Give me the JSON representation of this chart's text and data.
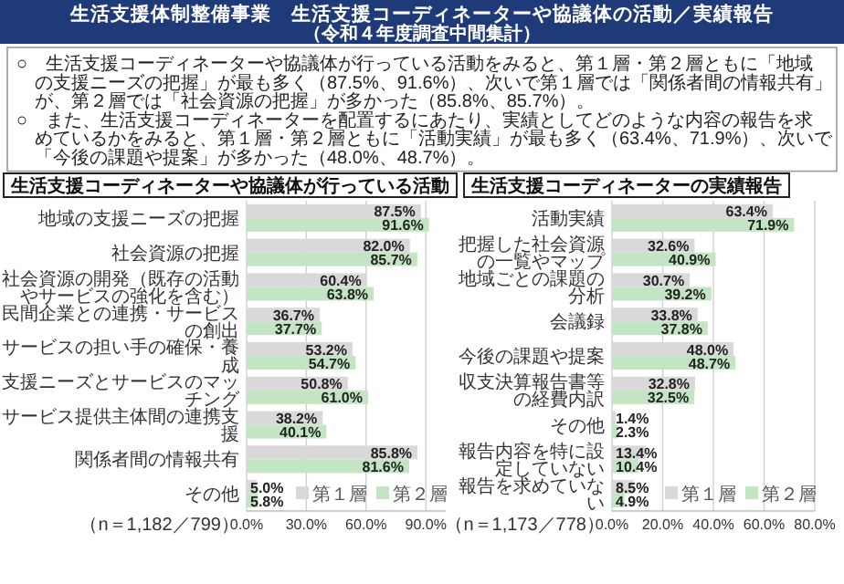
{
  "chart_data": [
    {
      "type": "other",
      "title": "生活支援体制整備事業　生活支援コーディネーターや協議体の活動／実績報告",
      "subtitle": "（令和４年度調査中間集計）",
      "annotations": [
        "○　生活支援コーディネーターや協議体が行っている活動をみると、第１層・第２層ともに「地域の支援ニーズの把握」が最も多く（87.5%、91.6%）、次いで第１層では「関係者間の情報共有」が、第２層では「社会資源の把握」が多かった（85.8%、85.7%）。",
        "○　また、生活支援コーディネーターを配置するにあたり、実績としてどのような内容の報告を求めているかをみると、第１層・第２層ともに「活動実績」が最も多く（63.4%、71.9%）、次いで「今後の課題や提案」が多かった（48.0%、48.7%）。"
      ]
    },
    {
      "type": "bar",
      "orientation": "horizontal",
      "title": "生活支援コーディネーターや協議体が行っている活動",
      "categories": [
        "地域の支援ニーズの把握",
        "社会資源の把握",
        "社会資源の開発（既存の活動やサービスの強化を含む）",
        "民間企業との連携・サービスの創出",
        "サービスの担い手の確保・養成",
        "支援ニーズとサービスのマッチング",
        "サービス提供主体間の連携支援",
        "関係者間の情報共有",
        "その他"
      ],
      "series": [
        {
          "name": "第１層",
          "color": "#d9d9d9",
          "values": [
            87.5,
            82.0,
            60.4,
            36.7,
            53.2,
            50.8,
            38.2,
            85.8,
            5.0
          ],
          "value_labels": [
            "87.5%",
            "82.0%",
            "60.4%",
            "36.7%",
            "53.2%",
            "50.8%",
            "38.2%",
            "85.8%",
            "5.0%"
          ]
        },
        {
          "name": "第２層",
          "color": "#c3e5c3",
          "values": [
            91.6,
            85.7,
            63.8,
            37.7,
            54.7,
            61.0,
            40.1,
            81.6,
            5.8
          ],
          "value_labels": [
            "91.6%",
            "85.7%",
            "63.8%",
            "37.7%",
            "54.7%",
            "61.0%",
            "40.1%",
            "81.6%",
            "5.8%"
          ]
        }
      ],
      "xlim": [
        0,
        100
      ],
      "xticks": [
        {
          "value": 0,
          "label": "0.0%"
        },
        {
          "value": 30,
          "label": "30.0%"
        },
        {
          "value": 60,
          "label": "60.0%"
        },
        {
          "value": 90,
          "label": "90.0%"
        }
      ],
      "grid": "x",
      "legend": "bottom right",
      "annotations": [
        "（n＝1,182／799）"
      ]
    },
    {
      "type": "bar",
      "orientation": "horizontal",
      "title": "生活支援コーディネーターの実績報告",
      "categories": [
        "活動実績",
        "把握した社会資源の一覧やマップ",
        "地域ごとの課題の分析",
        "会議録",
        "今後の課題や提案",
        "収支決算報告書等の経費内訳",
        "その他",
        "報告内容を特に設定していない",
        "報告を求めていない"
      ],
      "series": [
        {
          "name": "第１層",
          "color": "#d9d9d9",
          "values": [
            63.4,
            32.6,
            30.7,
            33.8,
            48.0,
            32.8,
            1.4,
            13.4,
            8.5
          ],
          "value_labels": [
            "63.4%",
            "32.6%",
            "30.7%",
            "33.8%",
            "48.0%",
            "32.8%",
            "1.4%",
            "13.4%",
            "8.5%"
          ]
        },
        {
          "name": "第２層",
          "color": "#c3e5c3",
          "values": [
            71.9,
            40.9,
            39.2,
            37.8,
            48.7,
            32.5,
            2.3,
            10.4,
            4.9
          ],
          "value_labels": [
            "71.9%",
            "40.9%",
            "39.2%",
            "37.8%",
            "48.7%",
            "32.5%",
            "2.3%",
            "10.4%",
            "4.9%"
          ]
        }
      ],
      "xlim": [
        0,
        80
      ],
      "xticks": [
        {
          "value": 0,
          "label": "0.0%"
        },
        {
          "value": 20,
          "label": "20.0%"
        },
        {
          "value": 40,
          "label": "40.0%"
        },
        {
          "value": 60,
          "label": "60.0%"
        },
        {
          "value": 80,
          "label": "80.0%"
        }
      ],
      "grid": "x",
      "legend": "bottom right",
      "annotations": [
        "（n＝1,173／778）"
      ]
    }
  ]
}
